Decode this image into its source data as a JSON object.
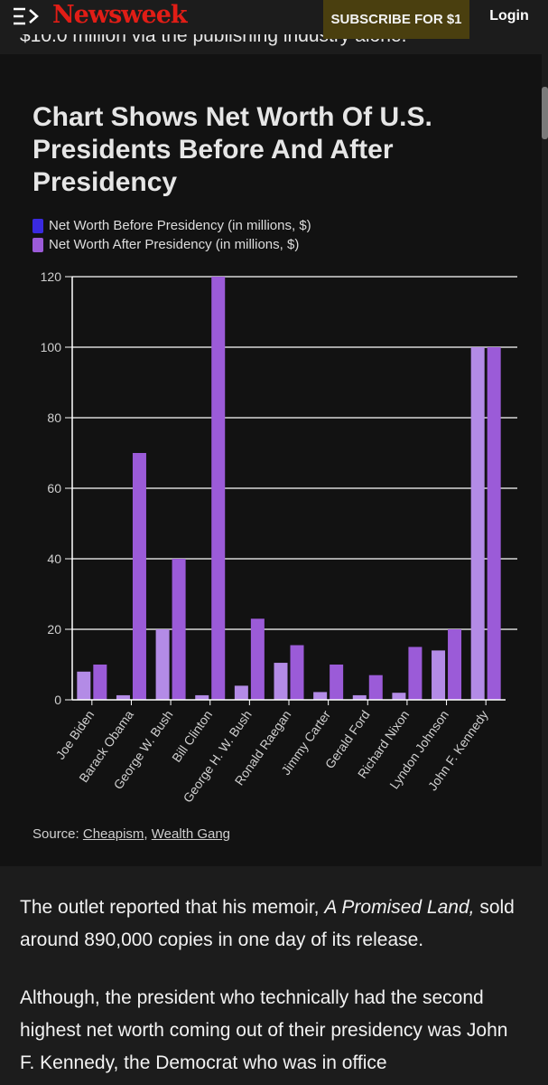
{
  "header": {
    "menu_icon": "menu-arrow-icon",
    "logo": "Newsweek",
    "subscribe_label": "SUBSCRIBE FOR $1",
    "login_label": "Login",
    "logo_color": "#e11d16",
    "subscribe_bg": "#4a3f0f"
  },
  "article": {
    "cut_text": "$10.0 million via the publishing industry alone.",
    "p1_before": "The outlet reported that his memoir, ",
    "p1_italic": "A Promised Land,",
    "p1_after": " sold around 890,000 copies in one day of its release.",
    "p2": "Although, the president who technically had the second highest net worth coming out of their presidency was John F. Kennedy, the Democrat who was in office"
  },
  "chart": {
    "source_label": "Source:",
    "source_link_1": "Cheapism",
    "source_sep": ",",
    "source_link_2": "Wealth Gang"
  },
  "chart_data": {
    "type": "bar",
    "title": "Chart Shows Net Worth Of U.S. Presidents Before And After Presidency",
    "categories": [
      "Joe Biden",
      "Barack Obama",
      "George W. Bush",
      "Bill Clinton",
      "George H. W. Bush",
      "Ronald Raegan",
      "Jimmy Carter",
      "Gerald Ford",
      "Richard Nixon",
      "Lyndon Johnson",
      "John F. Kennedy"
    ],
    "series": [
      {
        "name": "Net Worth Before Presidency (in millions, $)",
        "color": "#b38be6",
        "legend_color": "#3a2ae0",
        "values": [
          8,
          1.3,
          20,
          1.3,
          4,
          10.5,
          2.2,
          1.3,
          2,
          14,
          100
        ]
      },
      {
        "name": "Net Worth After Presidency (in millions, $)",
        "color": "#9b5bd8",
        "legend_color": "#9b5bd8",
        "values": [
          10,
          70,
          40,
          120,
          23,
          15.5,
          10,
          7,
          15,
          20,
          100
        ]
      }
    ],
    "xlabel": "",
    "ylabel": "",
    "ylim": [
      0,
      120
    ],
    "yticks": [
      0,
      20,
      40,
      60,
      80,
      100,
      120
    ],
    "grid": true,
    "legend_position": "top-left"
  }
}
